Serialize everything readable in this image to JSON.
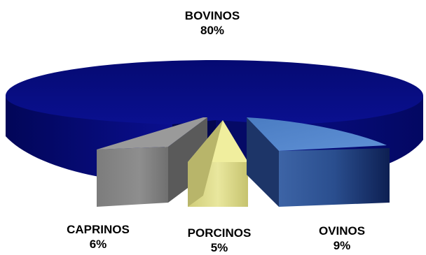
{
  "chart_data": {
    "type": "pie",
    "style": "3d-exploded",
    "categories": [
      "BOVINOS",
      "OVINOS",
      "PORCINOS",
      "CAPRINOS"
    ],
    "values": [
      80,
      9,
      5,
      6
    ],
    "value_labels": [
      "80%",
      "9%",
      "5%",
      "6%"
    ],
    "colors": [
      "#0a0f82",
      "#4f7fc4",
      "#e6e396",
      "#8c8c8c"
    ],
    "title": "",
    "legend": "none"
  }
}
